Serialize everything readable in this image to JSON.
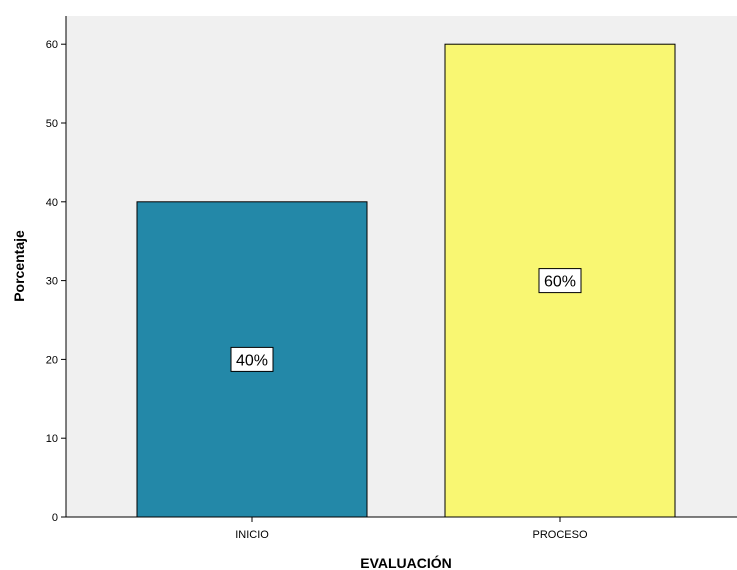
{
  "chart_data": {
    "type": "bar",
    "categories": [
      "INICIO",
      "PROCESO"
    ],
    "values": [
      40,
      60
    ],
    "data_labels": [
      "40%",
      "60%"
    ],
    "xlabel": "EVALUACIÓN",
    "ylabel": "Porcentaje",
    "ylim": [
      0,
      63
    ],
    "yticks": [
      0,
      10,
      20,
      30,
      40,
      50,
      60
    ],
    "grid": false,
    "bar_colors": [
      "#2388A8",
      "#F9F772"
    ],
    "plot_background": "#F0F0F0"
  }
}
